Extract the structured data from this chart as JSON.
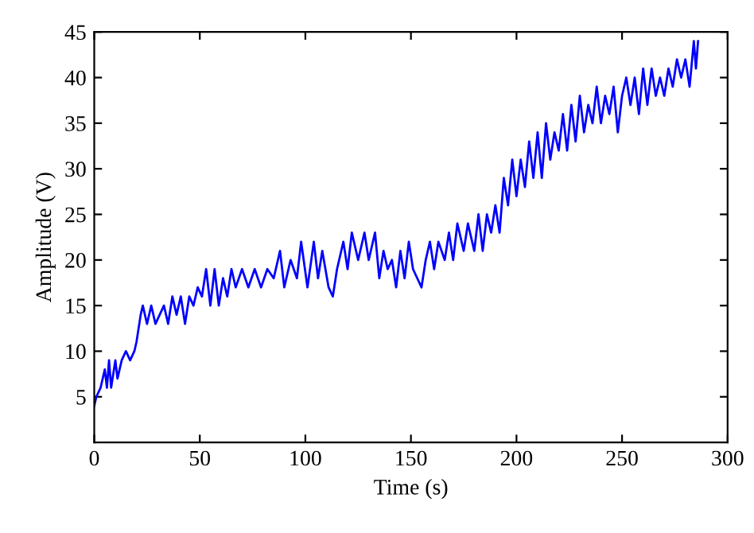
{
  "chart_data": {
    "type": "line",
    "xlabel": "Time (s)",
    "ylabel": "Amplitude (V)",
    "xlim": [
      0,
      300
    ],
    "ylim": [
      0,
      45
    ],
    "xticks": [
      0,
      50,
      100,
      150,
      200,
      250,
      300
    ],
    "yticks": [
      5,
      10,
      15,
      20,
      25,
      30,
      35,
      40,
      45
    ],
    "grid": false,
    "marker": "none",
    "line_style": "solid",
    "series": [
      {
        "color": "#0000ff",
        "x": [
          0,
          1,
          3,
          5,
          6,
          7,
          8,
          10,
          11,
          13,
          15,
          17,
          19,
          20,
          22,
          23,
          25,
          27,
          29,
          31,
          33,
          35,
          37,
          39,
          41,
          43,
          45,
          47,
          49,
          51,
          53,
          55,
          57,
          59,
          61,
          63,
          65,
          67,
          70,
          73,
          76,
          79,
          82,
          85,
          88,
          90,
          93,
          96,
          98,
          101,
          104,
          106,
          108,
          111,
          113,
          115,
          118,
          120,
          122,
          125,
          128,
          130,
          133,
          135,
          137,
          139,
          141,
          143,
          145,
          147,
          149,
          151,
          153,
          155,
          157,
          159,
          161,
          163,
          166,
          168,
          170,
          172,
          175,
          177,
          180,
          182,
          184,
          186,
          188,
          190,
          192,
          194,
          196,
          198,
          200,
          202,
          204,
          206,
          208,
          210,
          212,
          214,
          216,
          218,
          220,
          222,
          224,
          226,
          228,
          230,
          232,
          234,
          236,
          238,
          240,
          242,
          244,
          246,
          248,
          250,
          252,
          254,
          256,
          258,
          260,
          262,
          264,
          266,
          268,
          270,
          272,
          274,
          276,
          278,
          280,
          282,
          284,
          285,
          286
        ],
        "values": [
          4,
          5,
          6,
          8,
          6,
          9,
          6,
          9,
          7,
          9,
          10,
          9,
          10,
          11,
          14,
          15,
          13,
          15,
          13,
          14,
          15,
          13,
          16,
          14,
          16,
          13,
          16,
          15,
          17,
          16,
          19,
          15,
          19,
          15,
          18,
          16,
          19,
          17,
          19,
          17,
          19,
          17,
          19,
          18,
          21,
          17,
          20,
          18,
          22,
          17,
          22,
          18,
          21,
          17,
          16,
          19,
          22,
          19,
          23,
          20,
          23,
          20,
          23,
          18,
          21,
          19,
          20,
          17,
          21,
          18,
          22,
          19,
          18,
          17,
          20,
          22,
          19,
          22,
          20,
          23,
          20,
          24,
          21,
          24,
          21,
          25,
          21,
          25,
          23,
          26,
          23,
          29,
          26,
          31,
          27,
          31,
          28,
          33,
          29,
          34,
          29,
          35,
          31,
          34,
          32,
          36,
          32,
          37,
          33,
          38,
          34,
          37,
          35,
          39,
          35,
          38,
          36,
          39,
          34,
          38,
          40,
          37,
          40,
          36,
          41,
          37,
          41,
          38,
          40,
          38,
          41,
          39,
          42,
          40,
          42,
          39,
          44,
          41,
          44
        ]
      }
    ]
  }
}
